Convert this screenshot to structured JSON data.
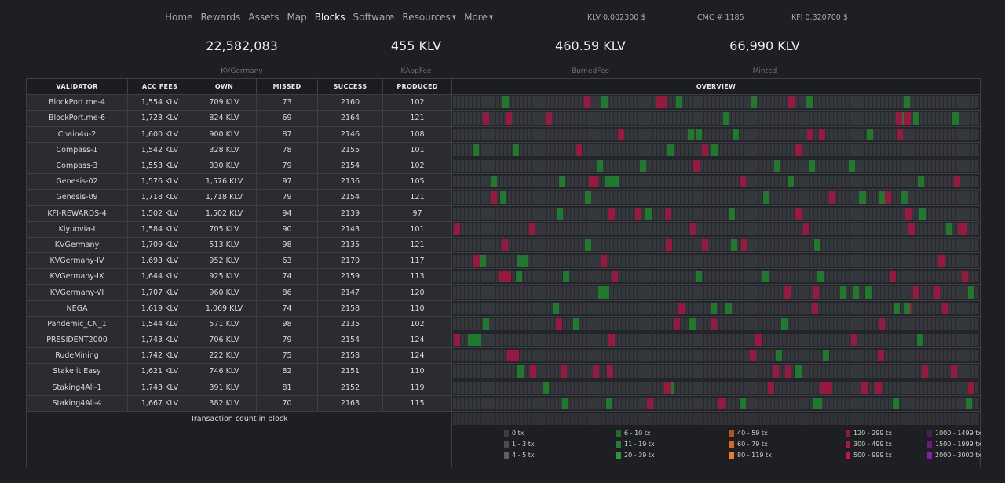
{
  "nav": [
    {
      "label": "Home",
      "active": false,
      "dropdown": false
    },
    {
      "label": "Rewards",
      "active": false,
      "dropdown": false
    },
    {
      "label": "Assets",
      "active": false,
      "dropdown": false
    },
    {
      "label": "Map",
      "active": false,
      "dropdown": false
    },
    {
      "label": "Blocks",
      "active": true,
      "dropdown": false
    },
    {
      "label": "Software",
      "active": false,
      "dropdown": false
    },
    {
      "label": "Resources",
      "active": false,
      "dropdown": true
    },
    {
      "label": "More",
      "active": false,
      "dropdown": true
    }
  ],
  "prices": {
    "klv": "KLV 0.002300 $",
    "cmc": "CMC # 1185",
    "kfi": "KFI 0.320700 $"
  },
  "stats": [
    {
      "value": "22,582,083",
      "label": "KVGermany"
    },
    {
      "value": "455 KLV",
      "label": "KAppFee"
    },
    {
      "value": "460.59 KLV",
      "label": "BurnedFee"
    },
    {
      "value": "66,990 KLV",
      "label": "Minted"
    }
  ],
  "columns": [
    "VALIDATOR",
    "ACC FEES",
    "OWN",
    "MISSED",
    "SUCCESS",
    "PRODUCED",
    "OVERVIEW"
  ],
  "rows": [
    {
      "name": "BlockPort.me-4",
      "fees": "1,554 KLV",
      "own": "709 KLV",
      "missed": "73",
      "success": "2160",
      "produced": "102"
    },
    {
      "name": "BlockPort.me-6",
      "fees": "1,723 KLV",
      "own": "824 KLV",
      "missed": "69",
      "success": "2164",
      "produced": "121"
    },
    {
      "name": "Chain4u-2",
      "fees": "1,600 KLV",
      "own": "900 KLV",
      "missed": "87",
      "success": "2146",
      "produced": "108"
    },
    {
      "name": "Compass-1",
      "fees": "1,542 KLV",
      "own": "328 KLV",
      "missed": "78",
      "success": "2155",
      "produced": "101"
    },
    {
      "name": "Compass-3",
      "fees": "1,553 KLV",
      "own": "330 KLV",
      "missed": "79",
      "success": "2154",
      "produced": "102"
    },
    {
      "name": "Genesis-02",
      "fees": "1,576 KLV",
      "own": "1,576 KLV",
      "missed": "97",
      "success": "2136",
      "produced": "105"
    },
    {
      "name": "Genesis-09",
      "fees": "1,718 KLV",
      "own": "1,718 KLV",
      "missed": "79",
      "success": "2154",
      "produced": "121"
    },
    {
      "name": "KFI-REWARDS-4",
      "fees": "1,502 KLV",
      "own": "1,502 KLV",
      "missed": "94",
      "success": "2139",
      "produced": "97"
    },
    {
      "name": "Kiyuovia-I",
      "fees": "1,584 KLV",
      "own": "705 KLV",
      "missed": "90",
      "success": "2143",
      "produced": "101"
    },
    {
      "name": "KVGermany",
      "fees": "1,709 KLV",
      "own": "513 KLV",
      "missed": "98",
      "success": "2135",
      "produced": "121"
    },
    {
      "name": "KVGermany-IV",
      "fees": "1,693 KLV",
      "own": "952 KLV",
      "missed": "63",
      "success": "2170",
      "produced": "117"
    },
    {
      "name": "KVGermany-IX",
      "fees": "1,644 KLV",
      "own": "925 KLV",
      "missed": "74",
      "success": "2159",
      "produced": "113"
    },
    {
      "name": "KVGermany-VI",
      "fees": "1,707 KLV",
      "own": "960 KLV",
      "missed": "86",
      "success": "2147",
      "produced": "120"
    },
    {
      "name": "NEGA",
      "fees": "1,619 KLV",
      "own": "1,069 KLV",
      "missed": "74",
      "success": "2158",
      "produced": "110"
    },
    {
      "name": "Pandemic_CN_1",
      "fees": "1,544 KLV",
      "own": "571 KLV",
      "missed": "98",
      "success": "2135",
      "produced": "102"
    },
    {
      "name": "PRESIDENT2000",
      "fees": "1,743 KLV",
      "own": "706 KLV",
      "missed": "79",
      "success": "2154",
      "produced": "124"
    },
    {
      "name": "RudeMining",
      "fees": "1,742 KLV",
      "own": "222 KLV",
      "missed": "75",
      "success": "2158",
      "produced": "124"
    },
    {
      "name": "Stake it Easy",
      "fees": "1,621 KLV",
      "own": "746 KLV",
      "missed": "82",
      "success": "2151",
      "produced": "110"
    },
    {
      "name": "Staking4All-1",
      "fees": "1,743 KLV",
      "own": "391 KLV",
      "missed": "81",
      "success": "2152",
      "produced": "119"
    },
    {
      "name": "Staking4All-4",
      "fees": "1,667 KLV",
      "own": "382 KLV",
      "missed": "70",
      "success": "2163",
      "produced": "115"
    }
  ],
  "footer_caption": "Transaction count in block",
  "legend": [
    {
      "label": "0 tx",
      "color": "#3a3d42"
    },
    {
      "label": "1 - 3 tx",
      "color": "#4a4d52"
    },
    {
      "label": "4 - 5 tx",
      "color": "#5c5f64"
    },
    {
      "label": "6 - 10 tx",
      "color": "#1f6b2c"
    },
    {
      "label": "11 - 19 tx",
      "color": "#238036"
    },
    {
      "label": "20 - 39 tx",
      "color": "#28973f"
    },
    {
      "label": "40 - 59 tx",
      "color": "#b0541a"
    },
    {
      "label": "60 - 79 tx",
      "color": "#cf6a1e"
    },
    {
      "label": "80 - 119 tx",
      "color": "#f07b1f"
    },
    {
      "label": "120 - 299 tx",
      "color": "#8d1c3d"
    },
    {
      "label": "300 - 499 tx",
      "color": "#a61848"
    },
    {
      "label": "500 - 999 tx",
      "color": "#c0154f"
    },
    {
      "label": "1000 - 1499 tx",
      "color": "#4d1b5e"
    },
    {
      "label": "1500 - 1999 tx",
      "color": "#6a1a82"
    },
    {
      "label": "2000 - 3000 tx",
      "color": "#8a1aa8"
    }
  ]
}
